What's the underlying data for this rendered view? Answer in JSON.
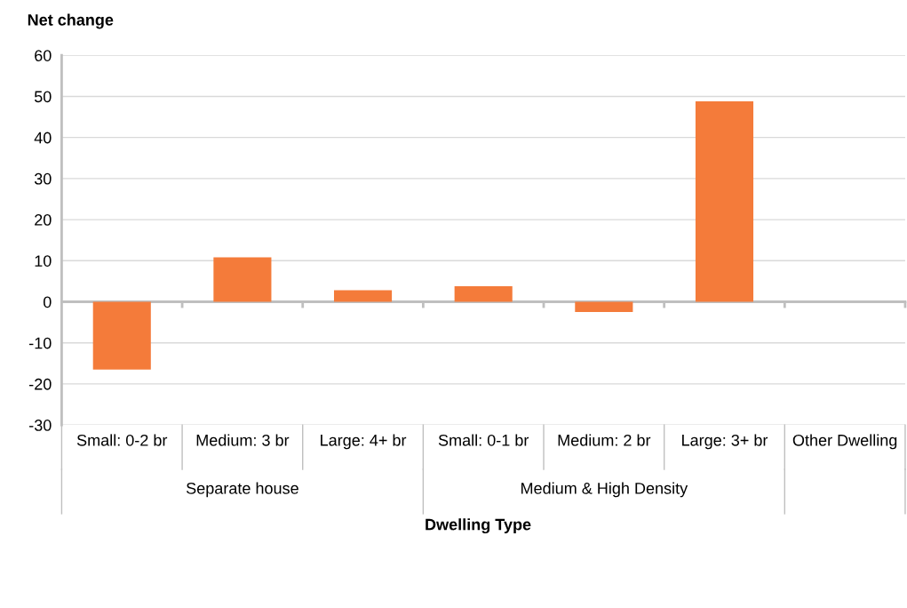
{
  "chart_data": {
    "type": "bar",
    "ylabel": "Net change",
    "xlabel": "Dwelling Type",
    "categories": [
      "Small: 0-2 br",
      "Medium: 3 br",
      "Large: 4+ br",
      "Small: 0-1 br",
      "Medium: 2 br",
      "Large: 3+ br",
      "Other Dwelling"
    ],
    "values": [
      -16.5,
      10.8,
      2.8,
      3.8,
      -2.5,
      48.8,
      0
    ],
    "color": "#f47b3a",
    "ylim": [
      -30,
      60
    ],
    "yticks": [
      -30,
      -20,
      -10,
      0,
      10,
      20,
      30,
      40,
      50,
      60
    ],
    "grid": "y",
    "annotations": [
      "Separate house",
      "Medium & High Density"
    ]
  }
}
